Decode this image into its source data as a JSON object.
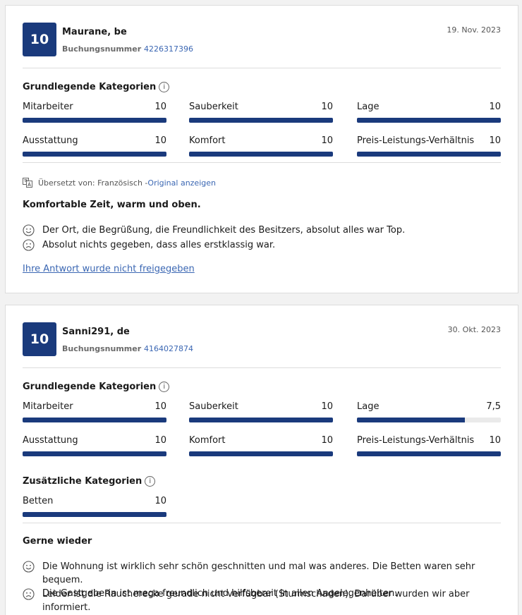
{
  "reviews": [
    {
      "score": "10",
      "author": "Maurane, be",
      "booking_label": "Buchungsnummer",
      "booking_number": "4226317396",
      "date": "19. Nov. 2023",
      "basic_title": "Grundlegende Kategorien",
      "basic_categories": [
        {
          "label": "Mitarbeiter",
          "value": "10",
          "score": 10
        },
        {
          "label": "Sauberkeit",
          "value": "10",
          "score": 10
        },
        {
          "label": "Lage",
          "value": "10",
          "score": 10
        },
        {
          "label": "Ausstattung",
          "value": "10",
          "score": 10
        },
        {
          "label": "Komfort",
          "value": "10",
          "score": 10
        },
        {
          "label": "Preis-Leistungs-Verhältnis",
          "value": "10",
          "score": 10
        }
      ],
      "translated_prefix": "Übersetzt von: Französisch - ",
      "original_link": "Original anzeigen",
      "title": "Komfortable Zeit, warm und oben.",
      "positive": "Der Ort, die Begrüßung, die Freundlichkeit des Besitzers, absolut alles war Top.",
      "negative": "Absolut nichts gegeben, dass alles erstklassig war.",
      "reply_link": "Ihre Antwort wurde nicht freigegeben"
    },
    {
      "score": "10",
      "author": "Sanni291, de",
      "booking_label": "Buchungsnummer",
      "booking_number": "4164027874",
      "date": "30. Okt. 2023",
      "basic_title": "Grundlegende Kategorien",
      "basic_categories": [
        {
          "label": "Mitarbeiter",
          "value": "10",
          "score": 10
        },
        {
          "label": "Sauberkeit",
          "value": "10",
          "score": 10
        },
        {
          "label": "Lage",
          "value": "7,5",
          "score": 7.5
        },
        {
          "label": "Ausstattung",
          "value": "10",
          "score": 10
        },
        {
          "label": "Komfort",
          "value": "10",
          "score": 10
        },
        {
          "label": "Preis-Leistungs-Verhältnis",
          "value": "10",
          "score": 10
        }
      ],
      "extra_title": "Zusätzliche Kategorien",
      "extra_categories": [
        {
          "label": "Betten",
          "value": "10",
          "score": 10
        }
      ],
      "title": "Gerne wieder",
      "positive_1": "Die Wohnung ist wirklich sehr schön geschnitten und mal was anderes. Die Betten waren sehr bequem.",
      "positive_2": "Die Gastgeberin ist mega freundlich und hilfsbereit in allen Angelegenheiten.",
      "negative": "Leider ist die Raucherecke gerade nicht verfügbar (Sturmschaden). Darüber wurden wir aber informiert."
    }
  ],
  "colors": {
    "accent": "#1a3a7c",
    "link": "#3b67b3",
    "bar_track": "#eaeaea"
  },
  "icons": {
    "info": "info-icon",
    "happy": "smiley-happy-icon",
    "sad": "smiley-sad-icon",
    "translate": "translate-icon"
  }
}
